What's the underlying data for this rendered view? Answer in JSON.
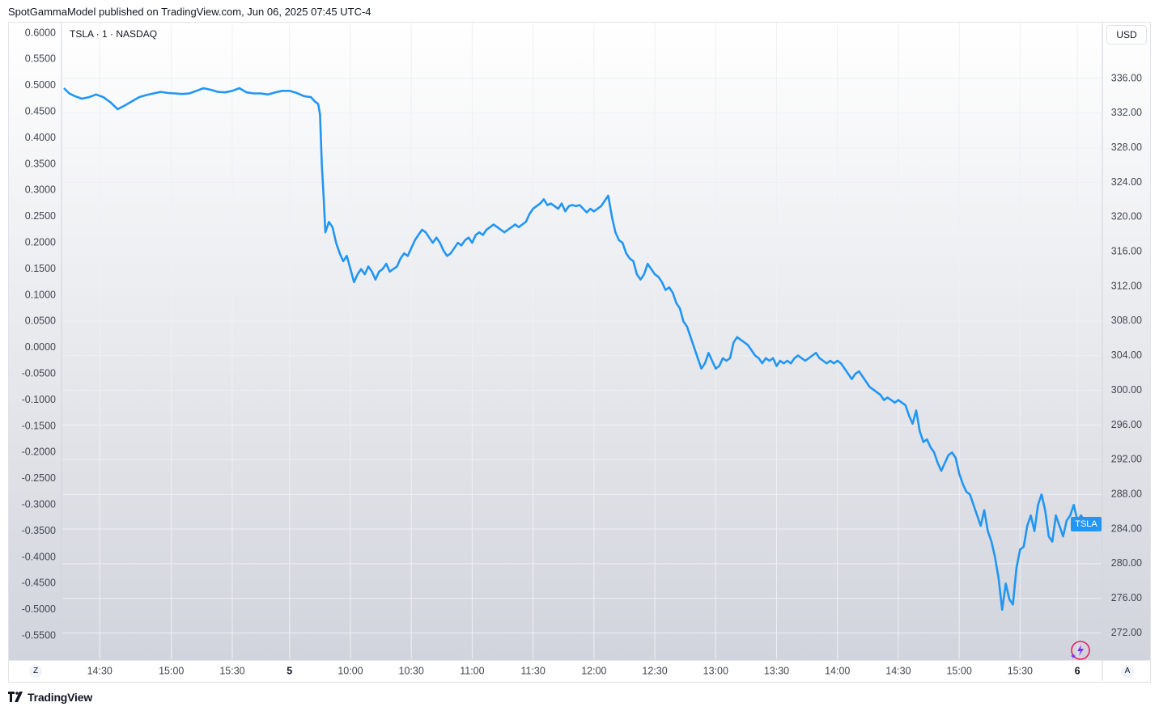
{
  "header": {
    "published_text": "SpotGammaModel published on TradingView.com, Jun 06, 2025 07:45 UTC-4"
  },
  "symbol_title": "TSLA · 1 · NASDAQ",
  "currency": "USD",
  "price_badge": "TSLA",
  "footer": {
    "brand": "TradingView"
  },
  "corner_buttons": {
    "left": "Z",
    "right": "A"
  },
  "colors": {
    "line": "#2196f3",
    "grid": "#eef0f3",
    "axis_text": "#434651",
    "badge": "#2196f3"
  },
  "chart_data": {
    "type": "line",
    "title": "TSLA · 1 · NASDAQ",
    "series": [
      {
        "name": "TSLA",
        "points": [
          [
            0,
            0.495
          ],
          [
            3,
            0.485
          ],
          [
            6,
            0.48
          ],
          [
            10,
            0.475
          ],
          [
            14,
            0.478
          ],
          [
            18,
            0.483
          ],
          [
            22,
            0.478
          ],
          [
            26,
            0.468
          ],
          [
            30,
            0.455
          ],
          [
            34,
            0.462
          ],
          [
            38,
            0.47
          ],
          [
            42,
            0.478
          ],
          [
            46,
            0.482
          ],
          [
            50,
            0.485
          ],
          [
            54,
            0.488
          ],
          [
            58,
            0.486
          ],
          [
            62,
            0.485
          ],
          [
            66,
            0.484
          ],
          [
            70,
            0.485
          ],
          [
            74,
            0.49
          ],
          [
            78,
            0.495
          ],
          [
            82,
            0.492
          ],
          [
            86,
            0.488
          ],
          [
            90,
            0.487
          ],
          [
            94,
            0.49
          ],
          [
            98,
            0.495
          ],
          [
            102,
            0.487
          ],
          [
            106,
            0.485
          ],
          [
            110,
            0.485
          ],
          [
            114,
            0.483
          ],
          [
            118,
            0.487
          ],
          [
            122,
            0.49
          ],
          [
            126,
            0.49
          ],
          [
            130,
            0.486
          ],
          [
            134,
            0.48
          ],
          [
            138,
            0.478
          ],
          [
            140,
            0.47
          ],
          [
            142,
            0.465
          ],
          [
            143,
            0.445
          ],
          [
            144,
            0.35
          ],
          [
            145,
            0.29
          ],
          [
            146,
            0.22
          ],
          [
            148,
            0.24
          ],
          [
            150,
            0.23
          ],
          [
            152,
            0.2
          ],
          [
            154,
            0.18
          ],
          [
            156,
            0.165
          ],
          [
            158,
            0.175
          ],
          [
            160,
            0.15
          ],
          [
            162,
            0.125
          ],
          [
            164,
            0.14
          ],
          [
            166,
            0.15
          ],
          [
            168,
            0.14
          ],
          [
            170,
            0.155
          ],
          [
            172,
            0.145
          ],
          [
            174,
            0.13
          ],
          [
            176,
            0.145
          ],
          [
            178,
            0.15
          ],
          [
            180,
            0.16
          ],
          [
            182,
            0.145
          ],
          [
            184,
            0.15
          ],
          [
            186,
            0.155
          ],
          [
            188,
            0.17
          ],
          [
            190,
            0.18
          ],
          [
            192,
            0.175
          ],
          [
            194,
            0.19
          ],
          [
            196,
            0.205
          ],
          [
            198,
            0.215
          ],
          [
            200,
            0.225
          ],
          [
            202,
            0.22
          ],
          [
            204,
            0.21
          ],
          [
            206,
            0.2
          ],
          [
            208,
            0.21
          ],
          [
            210,
            0.2
          ],
          [
            212,
            0.185
          ],
          [
            214,
            0.175
          ],
          [
            216,
            0.18
          ],
          [
            218,
            0.19
          ],
          [
            220,
            0.2
          ],
          [
            222,
            0.195
          ],
          [
            224,
            0.205
          ],
          [
            226,
            0.21
          ],
          [
            228,
            0.2
          ],
          [
            230,
            0.215
          ],
          [
            232,
            0.22
          ],
          [
            234,
            0.215
          ],
          [
            236,
            0.225
          ],
          [
            238,
            0.23
          ],
          [
            240,
            0.235
          ],
          [
            242,
            0.23
          ],
          [
            244,
            0.225
          ],
          [
            246,
            0.22
          ],
          [
            248,
            0.225
          ],
          [
            250,
            0.23
          ],
          [
            252,
            0.235
          ],
          [
            254,
            0.23
          ],
          [
            256,
            0.235
          ],
          [
            258,
            0.24
          ],
          [
            260,
            0.255
          ],
          [
            262,
            0.265
          ],
          [
            264,
            0.27
          ],
          [
            266,
            0.275
          ],
          [
            268,
            0.283
          ],
          [
            270,
            0.272
          ],
          [
            272,
            0.275
          ],
          [
            274,
            0.27
          ],
          [
            276,
            0.265
          ],
          [
            278,
            0.275
          ],
          [
            280,
            0.26
          ],
          [
            282,
            0.27
          ],
          [
            284,
            0.272
          ],
          [
            286,
            0.27
          ],
          [
            288,
            0.272
          ],
          [
            290,
            0.265
          ],
          [
            292,
            0.258
          ],
          [
            294,
            0.265
          ],
          [
            296,
            0.26
          ],
          [
            298,
            0.265
          ],
          [
            300,
            0.27
          ],
          [
            302,
            0.28
          ],
          [
            304,
            0.29
          ],
          [
            306,
            0.25
          ],
          [
            308,
            0.22
          ],
          [
            310,
            0.205
          ],
          [
            312,
            0.2
          ],
          [
            314,
            0.18
          ],
          [
            316,
            0.17
          ],
          [
            318,
            0.165
          ],
          [
            320,
            0.14
          ],
          [
            322,
            0.13
          ],
          [
            324,
            0.14
          ],
          [
            326,
            0.16
          ],
          [
            328,
            0.15
          ],
          [
            330,
            0.14
          ],
          [
            332,
            0.135
          ],
          [
            334,
            0.125
          ],
          [
            336,
            0.11
          ],
          [
            338,
            0.115
          ],
          [
            340,
            0.105
          ],
          [
            342,
            0.085
          ],
          [
            344,
            0.075
          ],
          [
            346,
            0.05
          ],
          [
            348,
            0.04
          ],
          [
            350,
            0.02
          ],
          [
            352,
            0.0
          ],
          [
            354,
            -0.02
          ],
          [
            356,
            -0.04
          ],
          [
            358,
            -0.03
          ],
          [
            360,
            -0.01
          ],
          [
            362,
            -0.025
          ],
          [
            364,
            -0.04
          ],
          [
            366,
            -0.035
          ],
          [
            368,
            -0.02
          ],
          [
            370,
            -0.025
          ],
          [
            372,
            -0.02
          ],
          [
            374,
            0.01
          ],
          [
            376,
            0.02
          ],
          [
            378,
            0.015
          ],
          [
            380,
            0.01
          ],
          [
            382,
            0.005
          ],
          [
            384,
            -0.005
          ],
          [
            386,
            -0.015
          ],
          [
            388,
            -0.02
          ],
          [
            390,
            -0.03
          ],
          [
            392,
            -0.02
          ],
          [
            394,
            -0.025
          ],
          [
            396,
            -0.02
          ],
          [
            398,
            -0.035
          ],
          [
            400,
            -0.025
          ],
          [
            402,
            -0.03
          ],
          [
            404,
            -0.025
          ],
          [
            406,
            -0.03
          ],
          [
            408,
            -0.02
          ],
          [
            410,
            -0.015
          ],
          [
            412,
            -0.02
          ],
          [
            414,
            -0.025
          ],
          [
            416,
            -0.02
          ],
          [
            418,
            -0.015
          ],
          [
            420,
            -0.01
          ],
          [
            422,
            -0.02
          ],
          [
            424,
            -0.025
          ],
          [
            426,
            -0.03
          ],
          [
            428,
            -0.025
          ],
          [
            430,
            -0.03
          ],
          [
            432,
            -0.025
          ],
          [
            434,
            -0.03
          ],
          [
            436,
            -0.04
          ],
          [
            438,
            -0.05
          ],
          [
            440,
            -0.06
          ],
          [
            442,
            -0.05
          ],
          [
            444,
            -0.045
          ],
          [
            446,
            -0.055
          ],
          [
            448,
            -0.065
          ],
          [
            450,
            -0.075
          ],
          [
            452,
            -0.08
          ],
          [
            454,
            -0.085
          ],
          [
            456,
            -0.09
          ],
          [
            458,
            -0.1
          ],
          [
            460,
            -0.095
          ],
          [
            462,
            -0.1
          ],
          [
            464,
            -0.105
          ],
          [
            466,
            -0.1
          ],
          [
            468,
            -0.105
          ],
          [
            470,
            -0.11
          ],
          [
            472,
            -0.13
          ],
          [
            474,
            -0.145
          ],
          [
            476,
            -0.12
          ],
          [
            478,
            -0.16
          ],
          [
            480,
            -0.18
          ],
          [
            482,
            -0.175
          ],
          [
            484,
            -0.19
          ],
          [
            486,
            -0.2
          ],
          [
            488,
            -0.22
          ],
          [
            490,
            -0.235
          ],
          [
            492,
            -0.22
          ],
          [
            494,
            -0.205
          ],
          [
            496,
            -0.2
          ],
          [
            498,
            -0.21
          ],
          [
            500,
            -0.24
          ],
          [
            502,
            -0.26
          ],
          [
            504,
            -0.275
          ],
          [
            506,
            -0.28
          ],
          [
            508,
            -0.3
          ],
          [
            510,
            -0.32
          ],
          [
            512,
            -0.34
          ],
          [
            514,
            -0.31
          ],
          [
            516,
            -0.35
          ],
          [
            518,
            -0.37
          ],
          [
            520,
            -0.4
          ],
          [
            522,
            -0.44
          ],
          [
            524,
            -0.5
          ],
          [
            526,
            -0.45
          ],
          [
            528,
            -0.48
          ],
          [
            530,
            -0.49
          ],
          [
            532,
            -0.42
          ],
          [
            534,
            -0.385
          ],
          [
            536,
            -0.38
          ],
          [
            538,
            -0.34
          ],
          [
            540,
            -0.32
          ],
          [
            542,
            -0.35
          ],
          [
            544,
            -0.3
          ],
          [
            546,
            -0.28
          ],
          [
            548,
            -0.31
          ],
          [
            550,
            -0.36
          ],
          [
            552,
            -0.37
          ],
          [
            554,
            -0.32
          ],
          [
            556,
            -0.34
          ],
          [
            558,
            -0.36
          ],
          [
            560,
            -0.33
          ],
          [
            562,
            -0.32
          ],
          [
            564,
            -0.3
          ],
          [
            566,
            -0.33
          ],
          [
            568,
            -0.32
          ],
          [
            570,
            -0.33
          ]
        ]
      }
    ],
    "x_range": [
      0,
      570
    ],
    "y_left": {
      "ticks": [
        "0.6000",
        "0.5500",
        "0.5000",
        "0.4500",
        "0.4000",
        "0.3500",
        "0.3000",
        "0.2500",
        "0.2000",
        "0.1500",
        "0.1000",
        "0.0500",
        "0.0000",
        "-0.0500",
        "-0.1000",
        "-0.1500",
        "-0.2000",
        "-0.2500",
        "-0.3000",
        "-0.3500",
        "-0.4000",
        "-0.4500",
        "-0.5000",
        "-0.5500"
      ],
      "range": [
        -0.6,
        0.6
      ]
    },
    "y_right": {
      "ticks": [
        "336.00",
        "332.00",
        "328.00",
        "324.00",
        "320.00",
        "316.00",
        "312.00",
        "308.00",
        "304.00",
        "300.00",
        "296.00",
        "292.00",
        "288.00",
        "284.00",
        "280.00",
        "276.00",
        "272.00"
      ]
    },
    "x_ticks": [
      {
        "label": "14:30",
        "x": 20,
        "bold": false
      },
      {
        "label": "15:00",
        "x": 60,
        "bold": false
      },
      {
        "label": "15:30",
        "x": 94,
        "bold": false
      },
      {
        "label": "5",
        "x": 126,
        "bold": true
      },
      {
        "label": "10:00",
        "x": 160,
        "bold": false
      },
      {
        "label": "10:30",
        "x": 194,
        "bold": false
      },
      {
        "label": "11:00",
        "x": 228,
        "bold": false
      },
      {
        "label": "11:30",
        "x": 262,
        "bold": false
      },
      {
        "label": "12:00",
        "x": 296,
        "bold": false
      },
      {
        "label": "12:30",
        "x": 330,
        "bold": false
      },
      {
        "label": "13:00",
        "x": 364,
        "bold": false
      },
      {
        "label": "13:30",
        "x": 398,
        "bold": false
      },
      {
        "label": "14:00",
        "x": 432,
        "bold": false
      },
      {
        "label": "14:30",
        "x": 466,
        "bold": false
      },
      {
        "label": "15:00",
        "x": 500,
        "bold": false
      },
      {
        "label": "15:30",
        "x": 534,
        "bold": false
      },
      {
        "label": "6",
        "x": 566,
        "bold": true
      }
    ],
    "grid": true
  }
}
